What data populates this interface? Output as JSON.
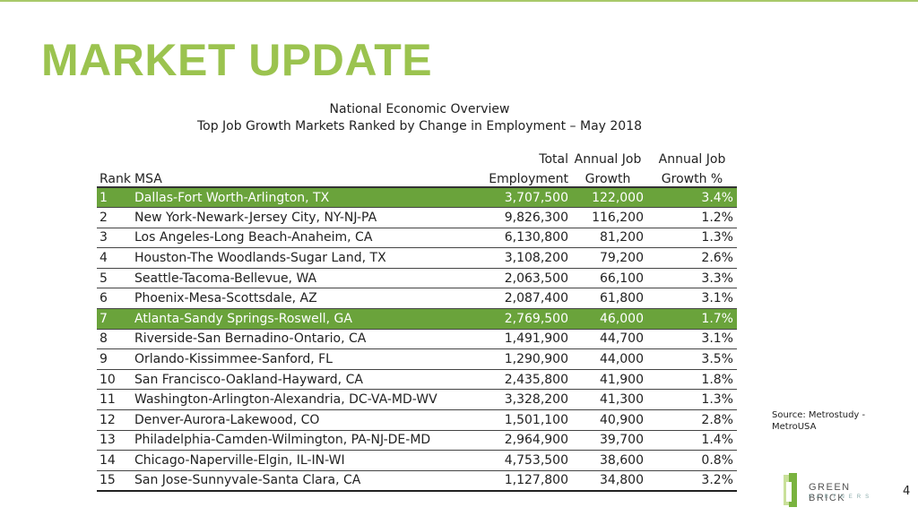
{
  "slide": {
    "title": "MARKET UPDATE",
    "subtitle_1": "National Economic Overview",
    "subtitle_2": "Top Job Growth Markets Ranked by Change in Employment – May 2018",
    "source": "Source: Metrostudy - MetroUSA",
    "page_number": "4",
    "accent_color": "#9bc34f",
    "highlight_color": "#6aa33b"
  },
  "table": {
    "headers_top": {
      "employment": "Total",
      "job_growth": "Annual Job",
      "growth_pct": "Annual Job"
    },
    "headers_bottom": {
      "rank": "Rank",
      "msa": "MSA",
      "employment": "Employment",
      "job_growth": "Growth",
      "growth_pct": "Growth %"
    },
    "rows": [
      {
        "rank": "1",
        "msa": "Dallas-Fort Worth-Arlington, TX",
        "employment": "3,707,500",
        "job_growth": "122,000",
        "growth_pct": "3.4%",
        "highlight": true
      },
      {
        "rank": "2",
        "msa": "New York-Newark-Jersey City, NY-NJ-PA",
        "employment": "9,826,300",
        "job_growth": "116,200",
        "growth_pct": "1.2%",
        "highlight": false
      },
      {
        "rank": "3",
        "msa": "Los Angeles-Long Beach-Anaheim, CA",
        "employment": "6,130,800",
        "job_growth": "81,200",
        "growth_pct": "1.3%",
        "highlight": false
      },
      {
        "rank": "4",
        "msa": "Houston-The Woodlands-Sugar Land, TX",
        "employment": "3,108,200",
        "job_growth": "79,200",
        "growth_pct": "2.6%",
        "highlight": false
      },
      {
        "rank": "5",
        "msa": "Seattle-Tacoma-Bellevue, WA",
        "employment": "2,063,500",
        "job_growth": "66,100",
        "growth_pct": "3.3%",
        "highlight": false
      },
      {
        "rank": "6",
        "msa": "Phoenix-Mesa-Scottsdale, AZ",
        "employment": "2,087,400",
        "job_growth": "61,800",
        "growth_pct": "3.1%",
        "highlight": false
      },
      {
        "rank": "7",
        "msa": "Atlanta-Sandy Springs-Roswell, GA",
        "employment": "2,769,500",
        "job_growth": "46,000",
        "growth_pct": "1.7%",
        "highlight": true
      },
      {
        "rank": "8",
        "msa": "Riverside-San Bernadino-Ontario, CA",
        "employment": "1,491,900",
        "job_growth": "44,700",
        "growth_pct": "3.1%",
        "highlight": false
      },
      {
        "rank": "9",
        "msa": "Orlando-Kissimmee-Sanford, FL",
        "employment": "1,290,900",
        "job_growth": "44,000",
        "growth_pct": "3.5%",
        "highlight": false
      },
      {
        "rank": "10",
        "msa": "San Francisco-Oakland-Hayward, CA",
        "employment": "2,435,800",
        "job_growth": "41,900",
        "growth_pct": "1.8%",
        "highlight": false
      },
      {
        "rank": "11",
        "msa": "Washington-Arlington-Alexandria, DC-VA-MD-WV",
        "employment": "3,328,200",
        "job_growth": "41,300",
        "growth_pct": "1.3%",
        "highlight": false
      },
      {
        "rank": "12",
        "msa": "Denver-Aurora-Lakewood, CO",
        "employment": "1,501,100",
        "job_growth": "40,900",
        "growth_pct": "2.8%",
        "highlight": false
      },
      {
        "rank": "13",
        "msa": "Philadelphia-Camden-Wilmington, PA-NJ-DE-MD",
        "employment": "2,964,900",
        "job_growth": "39,700",
        "growth_pct": "1.4%",
        "highlight": false
      },
      {
        "rank": "14",
        "msa": "Chicago-Naperville-Elgin, IL-IN-WI",
        "employment": "4,753,500",
        "job_growth": "38,600",
        "growth_pct": "0.8%",
        "highlight": false
      },
      {
        "rank": "15",
        "msa": "San Jose-Sunnyvale-Santa Clara, CA",
        "employment": "1,127,800",
        "job_growth": "34,800",
        "growth_pct": "3.2%",
        "highlight": false
      }
    ]
  },
  "logo": {
    "name": "GREEN BRICK",
    "sub": "PARTNERS",
    "icon": "green-brick-logo-icon"
  }
}
